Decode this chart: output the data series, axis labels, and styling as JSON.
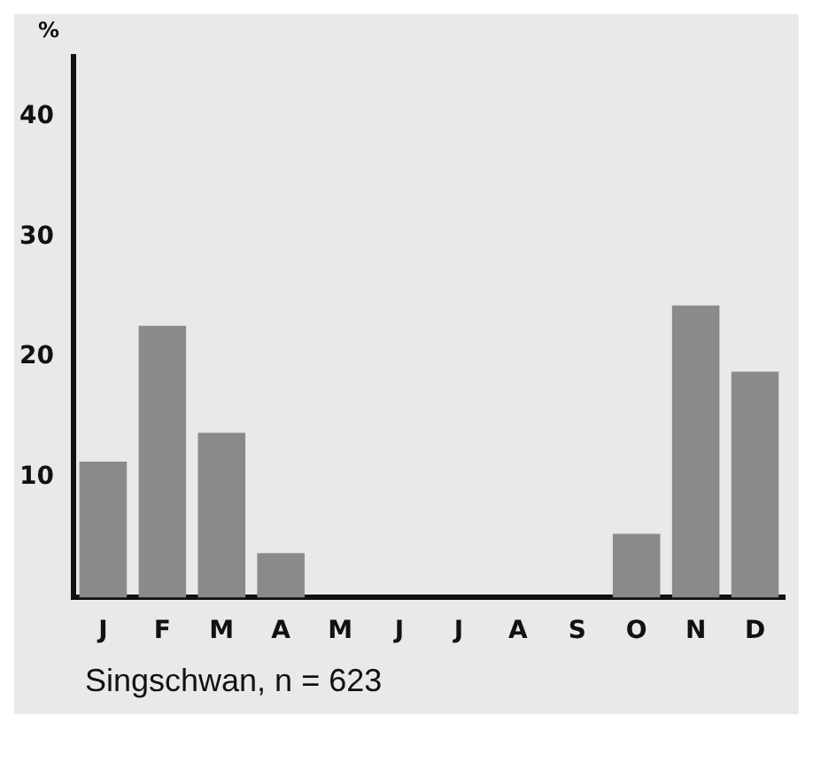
{
  "chart_data": {
    "type": "bar",
    "ylabel": "%",
    "categories": [
      "J",
      "F",
      "M",
      "A",
      "M",
      "J",
      "J",
      "A",
      "S",
      "O",
      "N",
      "D"
    ],
    "values": [
      11.3,
      22.6,
      13.7,
      3.7,
      0,
      0,
      0,
      0,
      0,
      5.3,
      24.3,
      18.8
    ],
    "color": "#8a8a8a",
    "ylim": [
      0,
      45
    ],
    "yticks": [
      10,
      20,
      30,
      40
    ],
    "grid": false,
    "legend": false,
    "annotations": [
      "Singschwan, n = 623"
    ]
  }
}
